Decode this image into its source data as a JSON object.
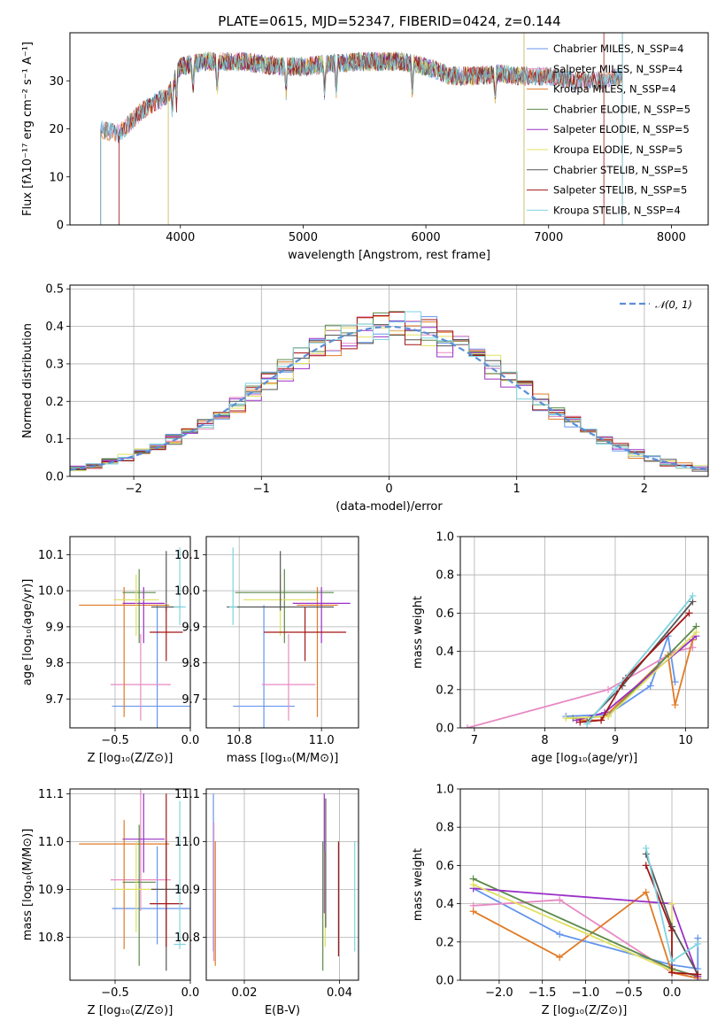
{
  "figure_title": "PLATE=0615, MJD=52347, FIBERID=0424, z=0.144",
  "model_colors": [
    "#6495ed",
    "#e78ac3",
    "#e07b26",
    "#5c8a4a",
    "#9b30c8",
    "#e0e060",
    "#555555",
    "#a31515",
    "#7fd3e0"
  ],
  "chart_data": [
    {
      "id": "spectrum",
      "type": "line",
      "title": "PLATE=0615, MJD=52347, FIBERID=0424, z=0.144",
      "xlabel": "wavelength [Angstrom, rest frame]",
      "ylabel": "Flux [fλ10⁻¹⁷ erg cm⁻² s⁻¹ A⁻¹]",
      "xlim": [
        3100,
        8300
      ],
      "ylim": [
        0,
        40
      ],
      "xticks": [
        4000,
        5000,
        6000,
        7000,
        8000
      ],
      "yticks": [
        0,
        10,
        20,
        30
      ],
      "grid": false,
      "legend_placement": "top-right",
      "continuum": {
        "x": [
          3350,
          3500,
          3700,
          3900,
          4000,
          4200,
          4500,
          4800,
          5000,
          5200,
          5500,
          5800,
          6000,
          6200,
          6400,
          6600,
          6800,
          7000,
          7200,
          7400,
          7600
        ],
        "y": [
          20,
          19,
          24,
          27,
          33,
          34,
          34,
          33,
          33,
          33.5,
          34,
          34,
          33,
          31,
          31,
          31.5,
          31,
          31,
          30,
          30,
          31
        ]
      },
      "series": [
        {
          "name": "Chabrier MILES, N_SSP=4",
          "x_range": [
            3350,
            7600
          ]
        },
        {
          "name": "Salpeter MILES, N_SSP=4",
          "x_range": [
            3350,
            7600
          ]
        },
        {
          "name": "Kroupa MILES, N_SSP=4",
          "x_range": [
            3350,
            7600
          ]
        },
        {
          "name": "Chabrier ELODIE, N_SSP=5",
          "x_range": [
            3900,
            6800
          ]
        },
        {
          "name": "Salpeter ELODIE, N_SSP=5",
          "x_range": [
            3900,
            6800
          ]
        },
        {
          "name": "Kroupa ELODIE, N_SSP=5",
          "x_range": [
            3900,
            6800
          ]
        },
        {
          "name": "Chabrier STELIB, N_SSP=5",
          "x_range": [
            3350,
            7600
          ]
        },
        {
          "name": "Salpeter STELIB, N_SSP=5",
          "x_range": [
            3500,
            7450
          ]
        },
        {
          "name": "Kroupa STELIB, N_SSP=4",
          "x_range": [
            3350,
            7600
          ]
        }
      ]
    },
    {
      "id": "residuals",
      "type": "histogram",
      "xlabel": "(data-model)/error",
      "ylabel": "Normed distribution",
      "xlim": [
        -2.5,
        2.5
      ],
      "ylim": [
        0,
        0.51
      ],
      "xticks": [
        -2,
        -1,
        0,
        1,
        2
      ],
      "yticks": [
        0.0,
        0.1,
        0.2,
        0.3,
        0.4,
        0.5
      ],
      "grid": true,
      "legend_placement": "top-right",
      "reference": {
        "name": "𝒩(0, 1)",
        "mean": 0,
        "sigma": 1
      },
      "bin_width": 0.125
    },
    {
      "id": "age_vs_Z",
      "type": "errorbar",
      "xlabel": "Z [log₁₀(Z/Z⊙)]",
      "ylabel": "age  [log₁₀(age/yr)]",
      "xlim": [
        -0.8,
        0.0
      ],
      "ylim": [
        9.62,
        10.15
      ],
      "xticks": [
        -0.5,
        0.0
      ],
      "yticks": [
        9.7,
        9.8,
        9.9,
        10.0,
        10.1
      ],
      "grid": true,
      "points": [
        {
          "x": -0.22,
          "xerr": 0.3,
          "y": 9.68,
          "yerr_lo": 0.1,
          "yerr_hi": 0.28
        },
        {
          "x": -0.33,
          "xerr": 0.2,
          "y": 9.74,
          "yerr_lo": 0.1,
          "yerr_hi": 0.14
        },
        {
          "x": -0.44,
          "xerr": 0.3,
          "y": 9.96,
          "yerr_lo": 0.31,
          "yerr_hi": 0.05
        },
        {
          "x": -0.34,
          "xerr": 0.11,
          "y": 9.995,
          "yerr_lo": 0.14,
          "yerr_hi": 0.065
        },
        {
          "x": -0.31,
          "xerr": 0.14,
          "y": 9.965,
          "yerr_lo": 0.11,
          "yerr_hi": 0.045
        },
        {
          "x": -0.36,
          "xerr": 0.15,
          "y": 9.975,
          "yerr_lo": 0.1,
          "yerr_hi": 0.07
        },
        {
          "x": -0.16,
          "xerr": 0.1,
          "y": 9.955,
          "yerr_lo": 0.01,
          "yerr_hi": 0.155
        },
        {
          "x": -0.16,
          "xerr": 0.11,
          "y": 9.885,
          "yerr_lo": 0.08,
          "yerr_hi": 0.07
        },
        {
          "x": -0.07,
          "xerr": 0.04,
          "y": 9.955,
          "yerr_lo": 0.05,
          "yerr_hi": 0.165
        }
      ]
    },
    {
      "id": "age_vs_mass",
      "type": "errorbar",
      "xlabel": "mass [log₁₀(M/M⊙)]",
      "ylabel": "",
      "xlim": [
        10.72,
        11.09
      ],
      "ylim": [
        9.62,
        10.15
      ],
      "xticks": [
        10.8,
        11.0
      ],
      "yticks": [
        9.7,
        9.8,
        9.9,
        10.0,
        10.1
      ],
      "grid": true,
      "points": [
        {
          "x": 10.86,
          "xerr": 0.075,
          "y": 9.68,
          "yerr_lo": 0.1,
          "yerr_hi": 0.28
        },
        {
          "x": 10.92,
          "xerr": 0.065,
          "y": 9.74,
          "yerr_lo": 0.1,
          "yerr_hi": 0.14
        },
        {
          "x": 10.99,
          "xerr": 0.05,
          "y": 9.96,
          "yerr_lo": 0.31,
          "yerr_hi": 0.05
        },
        {
          "x": 10.91,
          "xerr": 0.12,
          "y": 9.995,
          "yerr_lo": 0.14,
          "yerr_hi": 0.065
        },
        {
          "x": 11.0,
          "xerr": 0.07,
          "y": 9.965,
          "yerr_lo": 0.11,
          "yerr_hi": 0.045
        },
        {
          "x": 10.9,
          "xerr": 0.09,
          "y": 9.975,
          "yerr_lo": 0.1,
          "yerr_hi": 0.07
        },
        {
          "x": 10.9,
          "xerr": 0.13,
          "y": 9.955,
          "yerr_lo": 0.01,
          "yerr_hi": 0.155
        },
        {
          "x": 10.96,
          "xerr": 0.1,
          "y": 9.885,
          "yerr_lo": 0.08,
          "yerr_hi": 0.07
        },
        {
          "x": 10.785,
          "xerr": 0.01,
          "y": 9.955,
          "yerr_lo": 0.05,
          "yerr_hi": 0.165
        }
      ]
    },
    {
      "id": "mass_weight_vs_age",
      "type": "line",
      "xlabel": "age  [log₁₀(age/yr)]",
      "ylabel": "mass weight",
      "xlim": [
        6.8,
        10.32
      ],
      "ylim": [
        0.0,
        1.0
      ],
      "xticks": [
        7,
        8,
        9,
        10
      ],
      "yticks": [
        0.0,
        0.2,
        0.4,
        0.6,
        0.8,
        1.0
      ],
      "grid": true,
      "series": [
        {
          "x": [
            8.3,
            8.9,
            9.5,
            9.75,
            9.85
          ],
          "y": [
            0.06,
            0.07,
            0.22,
            0.48,
            0.24
          ]
        },
        {
          "x": [
            6.9,
            8.9,
            9.85,
            10.1
          ],
          "y": [
            0.0,
            0.2,
            0.4,
            0.42
          ]
        },
        {
          "x": [
            8.5,
            8.8,
            9.75,
            9.85,
            10.1
          ],
          "y": [
            0.04,
            0.04,
            0.38,
            0.12,
            0.46
          ]
        },
        {
          "x": [
            8.4,
            8.9,
            10.15
          ],
          "y": [
            0.05,
            0.06,
            0.53
          ]
        },
        {
          "x": [
            8.45,
            8.85,
            10.15
          ],
          "y": [
            0.04,
            0.08,
            0.48
          ]
        },
        {
          "x": [
            8.3,
            8.9,
            10.15
          ],
          "y": [
            0.05,
            0.06,
            0.5
          ]
        },
        {
          "x": [
            8.6,
            9.1,
            10.1
          ],
          "y": [
            0.03,
            0.22,
            0.66
          ]
        },
        {
          "x": [
            8.5,
            8.8,
            9.15,
            10.05
          ],
          "y": [
            0.03,
            0.04,
            0.26,
            0.6
          ]
        },
        {
          "x": [
            8.6,
            9.0,
            10.1
          ],
          "y": [
            0.02,
            0.2,
            0.69
          ]
        }
      ]
    },
    {
      "id": "mass_vs_Z",
      "type": "errorbar",
      "xlabel": "Z [log₁₀(Z/Z⊙)]",
      "ylabel": "mass [log₁₀(M/M⊙)]",
      "xlim": [
        -0.8,
        0.0
      ],
      "ylim": [
        10.71,
        11.11
      ],
      "xticks": [
        -0.5,
        0.0
      ],
      "yticks": [
        10.8,
        10.9,
        11.0,
        11.1
      ],
      "grid": true,
      "points": [
        {
          "x": -0.22,
          "xerr": 0.3,
          "y": 10.86,
          "yerr_lo": 0.075,
          "yerr_hi": 0.13
        },
        {
          "x": -0.33,
          "xerr": 0.2,
          "y": 10.92,
          "yerr_lo": 0.065,
          "yerr_hi": 0.19
        },
        {
          "x": -0.44,
          "xerr": 0.3,
          "y": 10.995,
          "yerr_lo": 0.22,
          "yerr_hi": 0.05
        },
        {
          "x": -0.34,
          "xerr": 0.11,
          "y": 10.915,
          "yerr_lo": 0.175,
          "yerr_hi": 0.12
        },
        {
          "x": -0.31,
          "xerr": 0.14,
          "y": 11.005,
          "yerr_lo": 0.07,
          "yerr_hi": 0.095
        },
        {
          "x": -0.36,
          "xerr": 0.15,
          "y": 10.9,
          "yerr_lo": 0.09,
          "yerr_hi": 0.1
        },
        {
          "x": -0.16,
          "xerr": 0.1,
          "y": 10.9,
          "yerr_lo": 0.17,
          "yerr_hi": 0.1
        },
        {
          "x": -0.16,
          "xerr": 0.11,
          "y": 10.87,
          "yerr_lo": 0.09,
          "yerr_hi": 0.23
        },
        {
          "x": -0.07,
          "xerr": 0.04,
          "y": 10.785,
          "yerr_lo": 0.01,
          "yerr_hi": 0.3
        }
      ]
    },
    {
      "id": "mass_vs_ebv",
      "type": "errorbar",
      "xlabel": "E(B-V)",
      "ylabel": "",
      "xlim": [
        0.012,
        0.044
      ],
      "ylim": [
        10.71,
        11.11
      ],
      "xticks": [
        0.02,
        0.04
      ],
      "yticks": [
        10.8,
        10.9,
        11.0,
        11.1
      ],
      "grid": true,
      "points": [
        {
          "x": 0.0135,
          "y": 10.95,
          "yerr_lo": 0.18,
          "yerr_hi": 0.15
        },
        {
          "x": 0.0136,
          "y": 10.92,
          "yerr_lo": 0.17,
          "yerr_hi": 0.12
        },
        {
          "x": 0.0139,
          "y": 10.9,
          "yerr_lo": 0.16,
          "yerr_hi": 0.1
        },
        {
          "x": 0.0365,
          "y": 10.9,
          "yerr_lo": 0.17,
          "yerr_hi": 0.1
        },
        {
          "x": 0.0368,
          "y": 10.95,
          "yerr_lo": 0.1,
          "yerr_hi": 0.15
        },
        {
          "x": 0.037,
          "y": 10.88,
          "yerr_lo": 0.1,
          "yerr_hi": 0.1
        },
        {
          "x": 0.0371,
          "y": 10.92,
          "yerr_lo": 0.1,
          "yerr_hi": 0.17
        },
        {
          "x": 0.0398,
          "y": 10.86,
          "yerr_lo": 0.1,
          "yerr_hi": 0.14
        },
        {
          "x": 0.0432,
          "y": 10.88,
          "yerr_lo": 0.11,
          "yerr_hi": 0.12
        }
      ]
    },
    {
      "id": "mass_weight_vs_Z",
      "type": "line",
      "xlabel": "Z [log₁₀(Z/Z⊙)]",
      "ylabel": "mass weight",
      "xlim": [
        -2.45,
        0.42
      ],
      "ylim": [
        0.0,
        1.0
      ],
      "xticks": [
        -2.0,
        -1.5,
        -1.0,
        -0.5,
        0.0
      ],
      "yticks": [
        0.0,
        0.2,
        0.4,
        0.6,
        0.8,
        1.0
      ],
      "grid": true,
      "series": [
        {
          "x": [
            -2.3,
            -1.3,
            0.0,
            0.3,
            0.3
          ],
          "y": [
            0.48,
            0.24,
            0.08,
            0.06,
            0.22
          ]
        },
        {
          "x": [
            -2.3,
            -1.3,
            0.0,
            0.3
          ],
          "y": [
            0.39,
            0.42,
            0.04,
            0.01
          ]
        },
        {
          "x": [
            -2.3,
            -1.3,
            -0.3,
            0.0,
            0.3
          ],
          "y": [
            0.36,
            0.12,
            0.46,
            0.04,
            0.01
          ]
        },
        {
          "x": [
            -2.3,
            0.0,
            0.3
          ],
          "y": [
            0.53,
            0.06,
            0.02
          ]
        },
        {
          "x": [
            -2.3,
            0.0,
            0.3
          ],
          "y": [
            0.48,
            0.4,
            0.02
          ]
        },
        {
          "x": [
            -2.3,
            0.0,
            0.0
          ],
          "y": [
            0.5,
            0.05,
            0.4
          ]
        },
        {
          "x": [
            -0.3,
            0.0,
            0.3
          ],
          "y": [
            0.66,
            0.28,
            0.03
          ]
        },
        {
          "x": [
            -0.3,
            0.0,
            0.0,
            0.3
          ],
          "y": [
            0.6,
            0.26,
            0.04,
            0.03
          ]
        },
        {
          "x": [
            -0.3,
            0.0,
            0.3
          ],
          "y": [
            0.69,
            0.1,
            0.19
          ]
        }
      ]
    }
  ]
}
